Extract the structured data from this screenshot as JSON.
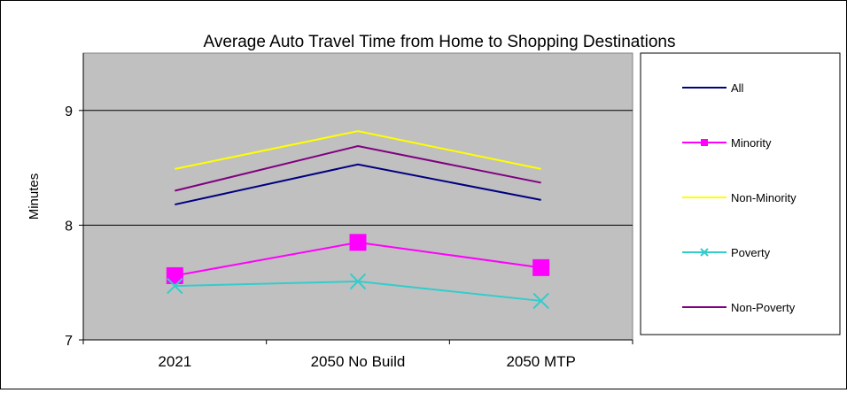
{
  "chart_data": {
    "type": "line",
    "title": "Average Auto Travel Time from Home to Shopping Destinations",
    "xlabel": "",
    "ylabel": "Minutes",
    "categories": [
      "2021",
      "2050 No Build",
      "2050 MTP"
    ],
    "ylim": [
      7,
      9.5
    ],
    "yticks": [
      7,
      8,
      9
    ],
    "grid": "horizontal",
    "legend_position": "right",
    "plot_background": "#c0c0c0",
    "series": [
      {
        "name": "All",
        "color": "#000080",
        "marker": "none",
        "values": [
          8.18,
          8.53,
          8.22
        ]
      },
      {
        "name": "Minority",
        "color": "#ff00ff",
        "marker": "square",
        "values": [
          7.56,
          7.85,
          7.63
        ]
      },
      {
        "name": "Non-Minority",
        "color": "#ffff00",
        "marker": "none",
        "values": [
          8.49,
          8.82,
          8.49
        ]
      },
      {
        "name": "Poverty",
        "color": "#33cccc",
        "marker": "x",
        "values": [
          7.47,
          7.51,
          7.34
        ]
      },
      {
        "name": "Non-Poverty",
        "color": "#800080",
        "marker": "none",
        "values": [
          8.3,
          8.69,
          8.37
        ]
      }
    ]
  }
}
